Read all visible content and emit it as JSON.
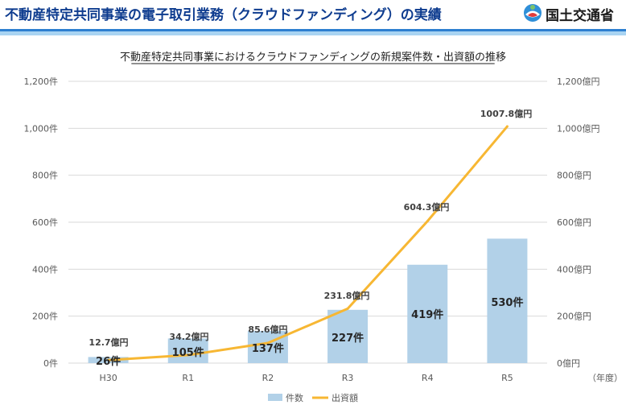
{
  "header": {
    "title": "不動産特定共同事業の電子取引業務（クラウドファンディング）の実績",
    "logo_text": "国土交通省"
  },
  "chart_data": {
    "type": "bar+line",
    "title": "不動産特定共同事業におけるクラウドファンディングの新規案件数・出資額の推移",
    "categories": [
      "H30",
      "R1",
      "R2",
      "R3",
      "R4",
      "R5"
    ],
    "series": [
      {
        "name": "件数",
        "type": "bar",
        "axis": "left",
        "values": [
          26,
          105,
          137,
          227,
          419,
          530
        ],
        "labels": [
          "26件",
          "105件",
          "137件",
          "227件",
          "419件",
          "530件"
        ],
        "color": "#b2d1e8"
      },
      {
        "name": "出資額",
        "type": "line",
        "axis": "right",
        "values": [
          12.7,
          34.2,
          85.6,
          231.8,
          604.3,
          1007.8
        ],
        "labels": [
          "12.7億円",
          "34.2億円",
          "85.6億円",
          "231.8億円",
          "604.3億円",
          "1007.8億円"
        ],
        "color": "#f7b733"
      }
    ],
    "y_left": {
      "ylim": [
        0,
        1200
      ],
      "ticks": [
        0,
        200,
        400,
        600,
        800,
        1000,
        1200
      ],
      "tick_labels": [
        "0件",
        "200件",
        "400件",
        "600件",
        "800件",
        "1,000件",
        "1,200件"
      ]
    },
    "y_right": {
      "ylim": [
        0,
        1200
      ],
      "ticks": [
        0,
        200,
        400,
        600,
        800,
        1000,
        1200
      ],
      "tick_labels": [
        "0億円",
        "200億円",
        "400億円",
        "600億円",
        "800億円",
        "1,000億円",
        "1,200億円"
      ]
    },
    "x_unit": "（年度）",
    "legend": [
      "件数",
      "出資額"
    ],
    "legend_position": "bottom",
    "grid": true
  }
}
